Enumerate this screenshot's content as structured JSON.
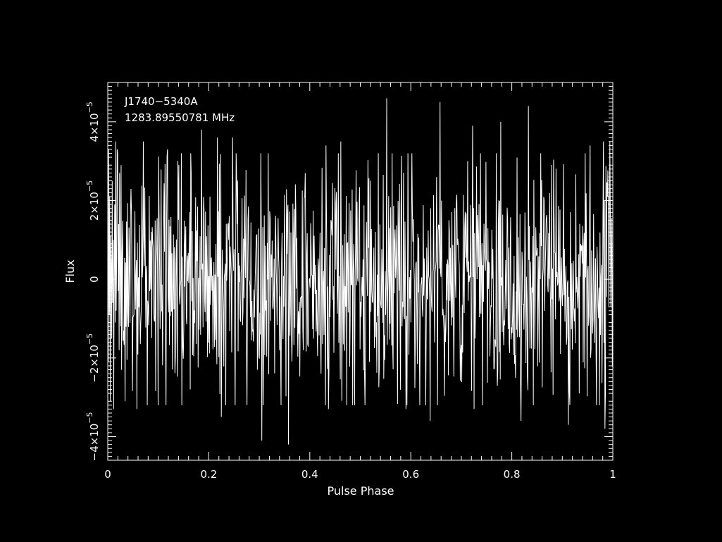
{
  "chart_data": {
    "type": "line",
    "title_lines": [
      "J1740−5340A",
      "1283.89550781 MHz"
    ],
    "xlabel": "Pulse Phase",
    "ylabel": "Flux",
    "xlim": [
      0,
      1
    ],
    "ylim": [
      -4.6e-05,
      5e-05
    ],
    "x_ticks": [
      {
        "value": 0,
        "label": "0"
      },
      {
        "value": 0.2,
        "label": "0.2"
      },
      {
        "value": 0.4,
        "label": "0.4"
      },
      {
        "value": 0.6,
        "label": "0.6"
      },
      {
        "value": 0.8,
        "label": "0.8"
      },
      {
        "value": 1,
        "label": "1"
      }
    ],
    "y_ticks": [
      {
        "value": -4e-05,
        "mant": "−4×10",
        "exp": "−5"
      },
      {
        "value": -2e-05,
        "mant": "−2×10",
        "exp": "−5"
      },
      {
        "value": 0,
        "mant": "0",
        "exp": ""
      },
      {
        "value": 2e-05,
        "mant": "2×10",
        "exp": "−5"
      },
      {
        "value": 4e-05,
        "mant": "4×10",
        "exp": "−5"
      }
    ],
    "grid": false,
    "colors": {
      "background": "#000000",
      "foreground": "#ffffff"
    },
    "series": [
      {
        "n_points": 1024,
        "noise_sigma": 1.6e-05,
        "values": [
          1.2e-05,
          -2.1e-05,
          3.3e-05,
          -9e-06,
          2.1e-05,
          -3.1e-05,
          1.1e-05,
          4e-06,
          -1.5e-05,
          2.5e-05,
          -6e-06,
          1e-05,
          -3.3e-05,
          2e-06,
          1.9e-05,
          -1.1e-05,
          3.5e-05,
          -8e-06,
          5e-06,
          -2.7e-05,
          3.2e-05,
          -3e-06,
          1.4e-05,
          -1.8e-05,
          2.7e-05,
          1e-06,
          -1.2e-05,
          2.9e-05,
          -2.3e-05,
          7e-06
        ]
      }
    ],
    "spikes": [
      {
        "x": 0.019,
        "y": 3.3e-05
      },
      {
        "x": 0.034,
        "y": -3.1e-05
      },
      {
        "x": 0.058,
        "y": -3.3e-05
      },
      {
        "x": 0.07,
        "y": 3.5e-05
      },
      {
        "x": 0.118,
        "y": 3.3e-05
      },
      {
        "x": 0.163,
        "y": -2.8e-05
      },
      {
        "x": 0.186,
        "y": 3.8e-05
      },
      {
        "x": 0.217,
        "y": 3.6e-05
      },
      {
        "x": 0.225,
        "y": -3.5e-05
      },
      {
        "x": 0.247,
        "y": 3.6e-05
      },
      {
        "x": 0.305,
        "y": -4.1e-05
      },
      {
        "x": 0.358,
        "y": -4.2e-05
      },
      {
        "x": 0.432,
        "y": 3.4e-05
      },
      {
        "x": 0.437,
        "y": -3.3e-05
      },
      {
        "x": 0.461,
        "y": 3.5e-05
      },
      {
        "x": 0.552,
        "y": 4.6e-05
      },
      {
        "x": 0.59,
        "y": -3.3e-05
      },
      {
        "x": 0.638,
        "y": -3.6e-05
      },
      {
        "x": 0.658,
        "y": 4.5e-05
      },
      {
        "x": 0.722,
        "y": 3.9e-05
      },
      {
        "x": 0.725,
        "y": -3.3e-05
      },
      {
        "x": 0.778,
        "y": 4e-05
      },
      {
        "x": 0.818,
        "y": -3.6e-05
      },
      {
        "x": 0.833,
        "y": 4.4e-05
      },
      {
        "x": 0.912,
        "y": -3.7e-05
      },
      {
        "x": 0.955,
        "y": 3.4e-05
      },
      {
        "x": 0.981,
        "y": 3.5e-05
      },
      {
        "x": 0.984,
        "y": -3.8e-05
      },
      {
        "x": 0.994,
        "y": 3.5e-05
      }
    ]
  }
}
